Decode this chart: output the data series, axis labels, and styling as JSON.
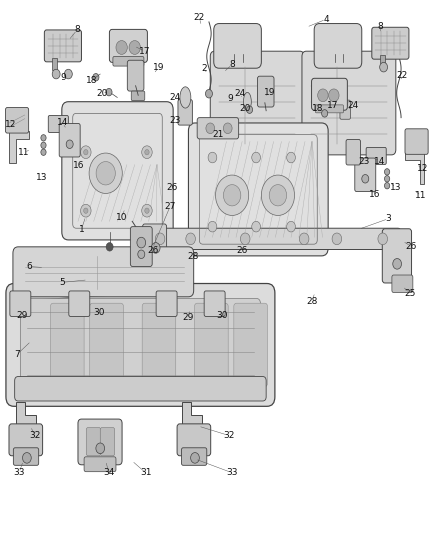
{
  "background_color": "#ffffff",
  "figsize": [
    4.38,
    5.33
  ],
  "dpi": 100,
  "line_color": "#444444",
  "label_color": "#111111",
  "label_fontsize": 6.5,
  "fill_light": "#e8e8e8",
  "fill_mid": "#d0d0d0",
  "fill_dark": "#b0b0b0",
  "fill_hatch": "#c8c8c8"
}
